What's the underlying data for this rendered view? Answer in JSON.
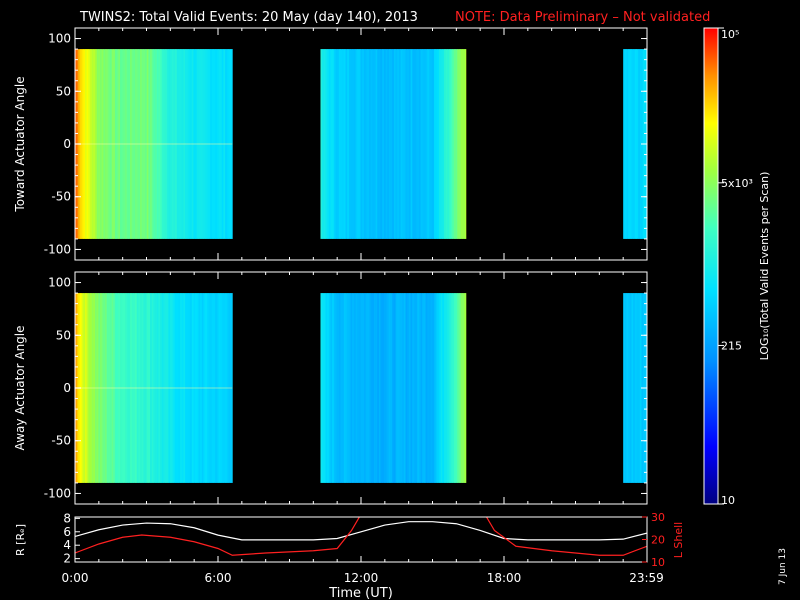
{
  "title": "TWINS2: Total Valid Events: 20 May (day 140), 2013",
  "note": "NOTE: Data Preliminary – Not validated",
  "date_stamp": "7 Jun 13",
  "colorbar": {
    "label": "LOG₁₀(Total Valid Events per Scan)",
    "ticks": [
      {
        "value": 100000,
        "label": "10⁵"
      },
      {
        "value": 5000,
        "label": "5x10³"
      },
      {
        "value": 215,
        "label": "215"
      },
      {
        "value": 10,
        "label": "10"
      }
    ],
    "range": [
      10,
      100000
    ],
    "scale": "log",
    "colormap": "rainbow"
  },
  "chart_data": [
    {
      "type": "heatmap",
      "ylabel": "Toward Actuator Angle",
      "ylim": [
        -110,
        110
      ],
      "yticks": [
        100,
        50,
        0,
        -50,
        -100
      ],
      "xlim": [
        0,
        24
      ],
      "angle_range": [
        -90,
        90
      ],
      "coverage_hours": [
        [
          0,
          6.6
        ],
        [
          10.3,
          16.4
        ],
        [
          23.0,
          24.0
        ]
      ],
      "approx_log_counts_by_hour": [
        {
          "t": 0.0,
          "v": 4.8
        },
        {
          "t": 0.3,
          "v": 4.3
        },
        {
          "t": 1.0,
          "v": 3.7
        },
        {
          "t": 2.0,
          "v": 3.5
        },
        {
          "t": 3.0,
          "v": 3.6
        },
        {
          "t": 4.0,
          "v": 3.1
        },
        {
          "t": 5.0,
          "v": 2.9
        },
        {
          "t": 6.5,
          "v": 2.8
        },
        {
          "t": 10.3,
          "v": 3.0
        },
        {
          "t": 11.0,
          "v": 2.7
        },
        {
          "t": 13.0,
          "v": 2.55
        },
        {
          "t": 15.0,
          "v": 2.6
        },
        {
          "t": 15.8,
          "v": 3.3
        },
        {
          "t": 16.4,
          "v": 3.9
        },
        {
          "t": 23.0,
          "v": 2.7
        },
        {
          "t": 24.0,
          "v": 2.75
        }
      ]
    },
    {
      "type": "heatmap",
      "ylabel": "Away Actuator Angle",
      "ylim": [
        -110,
        110
      ],
      "yticks": [
        100,
        50,
        0,
        -50,
        -100
      ],
      "xlim": [
        0,
        24
      ],
      "angle_range": [
        -90,
        90
      ],
      "coverage_hours": [
        [
          0,
          6.6
        ],
        [
          10.3,
          16.4
        ],
        [
          23.0,
          24.0
        ]
      ],
      "approx_log_counts_by_hour": [
        {
          "t": 0.0,
          "v": 4.6
        },
        {
          "t": 0.3,
          "v": 4.1
        },
        {
          "t": 1.0,
          "v": 3.6
        },
        {
          "t": 2.0,
          "v": 3.3
        },
        {
          "t": 3.0,
          "v": 3.2
        },
        {
          "t": 4.0,
          "v": 2.9
        },
        {
          "t": 5.0,
          "v": 2.75
        },
        {
          "t": 6.5,
          "v": 2.7
        },
        {
          "t": 10.3,
          "v": 2.85
        },
        {
          "t": 11.0,
          "v": 2.55
        },
        {
          "t": 13.0,
          "v": 2.45
        },
        {
          "t": 15.0,
          "v": 2.5
        },
        {
          "t": 15.8,
          "v": 3.2
        },
        {
          "t": 16.4,
          "v": 3.8
        },
        {
          "t": 23.0,
          "v": 2.6
        },
        {
          "t": 24.0,
          "v": 2.65
        }
      ]
    },
    {
      "type": "line",
      "xlabel": "Time (UT)",
      "ylabel": "R [Rₑ]",
      "y2label": "L Shell",
      "xlim": [
        0,
        24
      ],
      "xticks": [
        {
          "value": 0,
          "label": "0:00"
        },
        {
          "value": 6,
          "label": "6:00"
        },
        {
          "value": 12,
          "label": "12:00"
        },
        {
          "value": 18,
          "label": "18:00"
        },
        {
          "value": 23.98,
          "label": "23:59"
        }
      ],
      "ylim": [
        1.5,
        8.2
      ],
      "yticks": [
        2,
        4,
        6,
        8
      ],
      "y2lim": [
        10,
        30
      ],
      "y2ticks": [
        10,
        20,
        30
      ],
      "series": [
        {
          "color": "#ffffff",
          "axis": "left",
          "x": [
            0,
            1,
            2,
            3,
            4,
            5,
            6,
            7,
            8,
            9,
            10,
            11,
            12,
            13,
            14,
            15,
            16,
            17,
            18,
            19,
            20,
            21,
            22,
            23,
            24
          ],
          "y": [
            5.3,
            6.3,
            7.0,
            7.3,
            7.2,
            6.6,
            5.5,
            4.8,
            4.8,
            4.8,
            4.8,
            5.0,
            6.0,
            7.0,
            7.5,
            7.5,
            7.2,
            6.2,
            5.0,
            4.8,
            4.8,
            4.8,
            4.8,
            4.9,
            5.8
          ]
        },
        {
          "color": "#ff2020",
          "axis": "right",
          "x": [
            0,
            1,
            2,
            2.8,
            4,
            5,
            6,
            6.6,
            8,
            10,
            11,
            11.6,
            12.1,
            17.1,
            17.6,
            18.5,
            20,
            22,
            23,
            24
          ],
          "y": [
            14,
            18,
            21,
            22,
            21,
            19,
            16,
            13,
            14,
            15,
            16,
            24,
            33,
            33,
            24,
            17,
            15,
            13,
            13,
            17
          ]
        }
      ]
    }
  ]
}
